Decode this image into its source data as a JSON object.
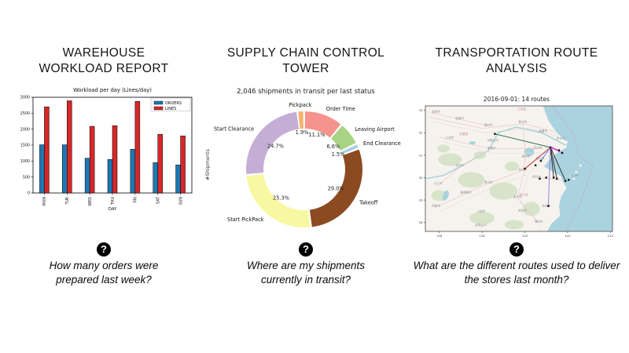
{
  "icons": {
    "question_glyph": "?"
  },
  "panels": [
    {
      "id": "warehouse",
      "title": "WAREHOUSE WORKLOAD REPORT",
      "question": "How many orders were prepared last week?"
    },
    {
      "id": "control-tower",
      "title": "SUPPLY CHAIN CONTROL TOWER",
      "question": "Where are my shipments currently in transit?"
    },
    {
      "id": "routes",
      "title": "TRANSPORTATION ROUTE ANALYSIS",
      "question": "What are the different routes used to deliver the stores last month?"
    }
  ],
  "chart_data": [
    {
      "type": "bar",
      "title": "Workload per day (Lines/day)",
      "xlabel": "DAY",
      "ylabel": "",
      "categories": [
        "MON",
        "TUE",
        "WED",
        "THU",
        "FRI",
        "SAT",
        "SUN"
      ],
      "series": [
        {
          "name": "ORDERS",
          "color": "#1f77b4",
          "values": [
            1510,
            1510,
            1090,
            1050,
            1370,
            950,
            880
          ]
        },
        {
          "name": "LINES",
          "color": "#d62728",
          "values": [
            2700,
            2890,
            2090,
            2110,
            2870,
            1840,
            1790
          ]
        }
      ],
      "ylim": [
        0,
        3000
      ],
      "yticks": [
        0,
        500,
        1000,
        1500,
        2000,
        2500,
        3000
      ],
      "legend_position": "upper right",
      "grid": false
    },
    {
      "type": "pie",
      "donut": true,
      "title": "2,046 shipments in transit per last status",
      "ylabel": "#Shipments",
      "start_angle_deg": 97,
      "slices": [
        {
          "label": "Pickpack",
          "pct": 1.9,
          "color": "#f6b26b"
        },
        {
          "label": "Order Time",
          "pct": 11.1,
          "color": "#f4948c"
        },
        {
          "label": "Leaving Airport",
          "pct": 6.6,
          "color": "#a8d484"
        },
        {
          "label": "End Clearance",
          "pct": 1.5,
          "color": "#a9cfe5"
        },
        {
          "label": "Takeoff",
          "pct": 29.0,
          "color": "#8c4a21"
        },
        {
          "label": "Start PickPack",
          "pct": 25.3,
          "color": "#f8f8a3"
        },
        {
          "label": "Start Clearance",
          "pct": 24.7,
          "color": "#c5aed6"
        }
      ]
    }
  ],
  "map": {
    "title": "2016-09-01: 14 routes",
    "xticks": [
      116,
      118,
      120,
      122,
      124
    ],
    "yticks": [
      28,
      29,
      30,
      31,
      32,
      33
    ],
    "lon_range": [
      115.35,
      124.1
    ],
    "lat_range": [
      27.6,
      33.2
    ],
    "sea_color": "#aad3df",
    "land_color": "#f6f3ee",
    "hub": {
      "lon": 121.2,
      "lat": 31.35
    },
    "routes": [
      {
        "color": "#1b5e3a",
        "to": [
          118.6,
          31.95
        ]
      },
      {
        "color": "#cd3232",
        "to": [
          120.0,
          30.4
        ]
      },
      {
        "color": "#8c7ae6",
        "to": [
          121.1,
          28.73
        ]
      },
      {
        "color": "#4c6ef5",
        "to": [
          120.75,
          30.75
        ]
      },
      {
        "color": "#222222",
        "to": [
          121.5,
          29.95
        ]
      },
      {
        "color": "#222222",
        "to": [
          121.9,
          29.85
        ]
      },
      {
        "color": "#222222",
        "to": [
          121.35,
          30.0
        ]
      },
      {
        "color": "#d63ad6",
        "to": [
          121.75,
          31.1
        ]
      },
      {
        "color": "#d63ad6",
        "to": [
          121.6,
          31.22
        ]
      }
    ],
    "extra_markers": [
      [
        120.7,
        29.95
      ],
      [
        121.0,
        30.0
      ],
      [
        122.05,
        29.9
      ],
      [
        120.5,
        30.55
      ]
    ],
    "city_labels": [
      {
        "name": "阜阳市",
        "lon": 115.85,
        "lat": 32.9
      },
      {
        "name": "淮南市",
        "lon": 116.95,
        "lat": 32.6
      },
      {
        "name": "滁州市",
        "lon": 118.3,
        "lat": 32.3
      },
      {
        "name": "泰州市",
        "lon": 119.9,
        "lat": 32.45
      },
      {
        "name": "南通市",
        "lon": 120.85,
        "lat": 32.05
      },
      {
        "name": "六安市",
        "lon": 116.5,
        "lat": 31.75
      },
      {
        "name": "马鞍山市",
        "lon": 118.5,
        "lat": 31.62
      },
      {
        "name": "芜湖市",
        "lon": 118.45,
        "lat": 31.28
      },
      {
        "name": "苏州市",
        "lon": 120.6,
        "lat": 31.3
      },
      {
        "name": "启东市",
        "lon": 121.68,
        "lat": 31.72
      },
      {
        "name": "湖州市",
        "lon": 120.05,
        "lat": 30.9
      },
      {
        "name": "嘉兴市",
        "lon": 120.72,
        "lat": 30.82
      },
      {
        "name": "杭州市",
        "lon": 119.9,
        "lat": 30.32
      },
      {
        "name": "绍兴市",
        "lon": 120.55,
        "lat": 30.0
      },
      {
        "name": "舟山市",
        "lon": 122.3,
        "lat": 30.05
      },
      {
        "name": "安庆市",
        "lon": 116.95,
        "lat": 30.5
      },
      {
        "name": "黄山市",
        "lon": 118.3,
        "lat": 29.75
      },
      {
        "name": "九江市",
        "lon": 115.95,
        "lat": 29.7
      },
      {
        "name": "景德镇市",
        "lon": 117.25,
        "lat": 29.3
      },
      {
        "name": "金华市",
        "lon": 119.65,
        "lat": 29.1
      },
      {
        "name": "丽水市",
        "lon": 119.9,
        "lat": 28.5
      },
      {
        "name": "台州市",
        "lon": 121.0,
        "lat": 28.7
      },
      {
        "name": "温州市",
        "lon": 120.65,
        "lat": 28.0
      },
      {
        "name": "上饶市",
        "lon": 117.95,
        "lat": 28.45
      },
      {
        "name": "南昌市",
        "lon": 115.85,
        "lat": 28.7
      },
      {
        "name": "武夷山市",
        "lon": 117.95,
        "lat": 27.85
      }
    ],
    "province_labels": [
      {
        "name": "江苏省",
        "lon": 119.85,
        "lat": 33.0
      },
      {
        "name": "安徽省",
        "lon": 117.15,
        "lat": 31.9
      },
      {
        "name": "浙江省",
        "lon": 119.95,
        "lat": 29.2
      }
    ]
  }
}
